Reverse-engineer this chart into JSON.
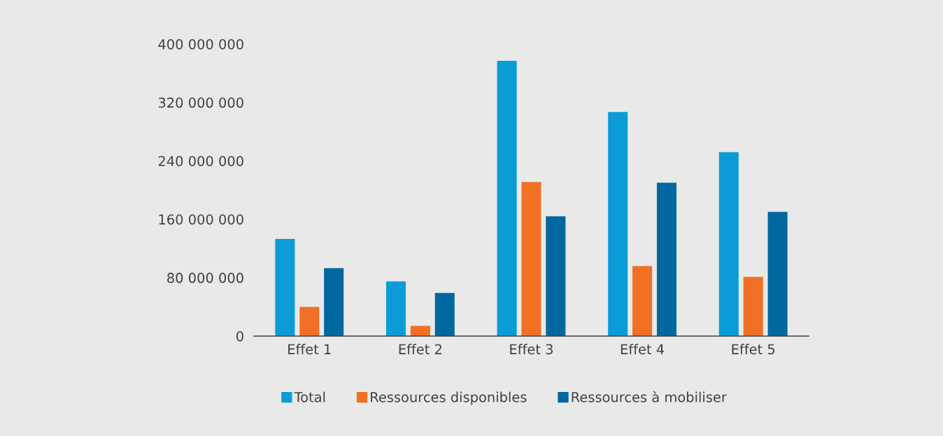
{
  "chart_data": {
    "type": "bar",
    "categories": [
      "Effet 1",
      "Effet 2",
      "Effet 3",
      "Effet 4",
      "Effet 5"
    ],
    "series": [
      {
        "name": "Total",
        "color": "#0b9cd8",
        "values": [
          133000000,
          75000000,
          377000000,
          307000000,
          252000000
        ]
      },
      {
        "name": "Ressources disponibles",
        "color": "#f26f26",
        "values": [
          40000000,
          14000000,
          211000000,
          96000000,
          81000000
        ]
      },
      {
        "name": "Ressources à mobiliser",
        "color": "#00689f",
        "values": [
          93000000,
          59000000,
          164000000,
          210000000,
          170000000
        ]
      }
    ],
    "ylim": [
      0,
      400000000
    ],
    "yticks": [
      0,
      {
        "value": 80000000,
        "label": "80 000 000"
      },
      {
        "value": 160000000,
        "label": "160 000 000"
      },
      {
        "value": 240000000,
        "label": "240 000 000"
      },
      {
        "value": 320000000,
        "label": "320 000 000"
      },
      {
        "value": 400000000,
        "label": "400 000 000"
      }
    ],
    "legend": "bottom"
  }
}
